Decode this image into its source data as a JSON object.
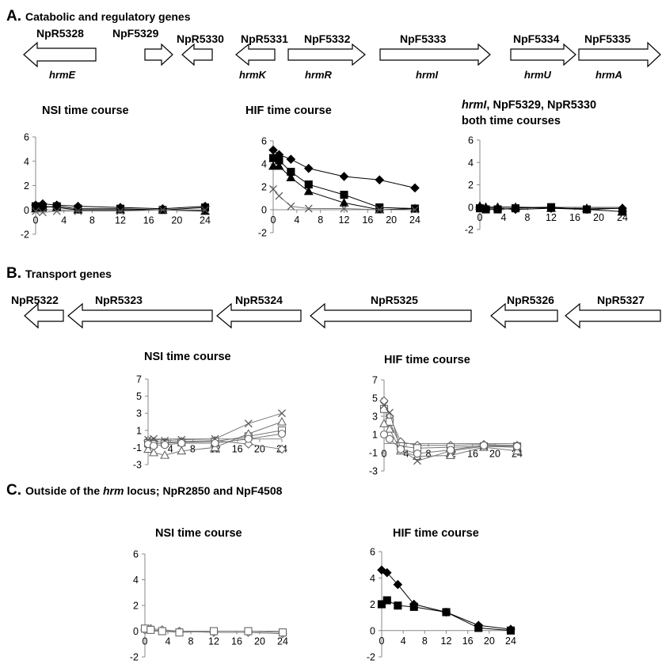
{
  "sections": [
    {
      "letter": "A.",
      "title": "Catabolic and regulatory genes",
      "title_italic": "",
      "title_tail": ""
    },
    {
      "letter": "B.",
      "title": "Transport genes",
      "title_italic": "",
      "title_tail": ""
    },
    {
      "letter": "C.",
      "title": "Outside of the ",
      "title_italic": "hrm",
      "title_tail": " locus; NpR2850 and NpF4508"
    }
  ],
  "genes_a": [
    {
      "name": "NpR5328",
      "symbol": "hrmE",
      "direction": "left"
    },
    {
      "name": "NpF5329",
      "symbol": "",
      "direction": "right"
    },
    {
      "name": "NpR5330",
      "symbol": "",
      "direction": "left"
    },
    {
      "name": "NpR5331",
      "symbol": "hrmK",
      "direction": "left"
    },
    {
      "name": "NpF5332",
      "symbol": "hrmR",
      "direction": "right"
    },
    {
      "name": "NpF5333",
      "symbol": "hrmI",
      "direction": "right"
    },
    {
      "name": "NpF5334",
      "symbol": "hrmU",
      "direction": "right"
    },
    {
      "name": "NpF5335",
      "symbol": "hrmA",
      "direction": "right"
    }
  ],
  "genes_b": [
    {
      "name": "NpR5322",
      "direction": "left"
    },
    {
      "name": "NpR5323",
      "direction": "left"
    },
    {
      "name": "NpR5324",
      "direction": "left"
    },
    {
      "name": "NpR5325",
      "direction": "left"
    },
    {
      "name": "NpR5326",
      "direction": "left"
    },
    {
      "name": "NpR5327",
      "direction": "left"
    }
  ],
  "chart_data": [
    {
      "id": "A-NSI",
      "type": "line",
      "title": "NSI time course",
      "x_ticks": [
        0,
        4,
        8,
        12,
        16,
        20,
        24
      ],
      "y_ticks": [
        -2,
        0,
        2,
        4,
        6
      ],
      "ylim": [
        -2,
        6
      ],
      "series": [
        {
          "marker": "diamond",
          "filled": true,
          "x": [
            0,
            1,
            3,
            6,
            12,
            18,
            24
          ],
          "y": [
            0.4,
            0.5,
            0.4,
            0.3,
            0.2,
            0.1,
            0.3
          ]
        },
        {
          "marker": "square",
          "filled": true,
          "x": [
            0,
            1,
            3,
            6,
            12,
            18,
            24
          ],
          "y": [
            0.3,
            0.2,
            0.3,
            0.1,
            0.1,
            0.0,
            0.2
          ]
        },
        {
          "marker": "triangle",
          "filled": true,
          "x": [
            0,
            1,
            3,
            6,
            12,
            18,
            24
          ],
          "y": [
            0.1,
            0.3,
            0.2,
            0.0,
            0.0,
            0.0,
            -0.1
          ]
        },
        {
          "marker": "x",
          "filled": false,
          "x": [
            0,
            1,
            3,
            6,
            12,
            18,
            24
          ],
          "y": [
            -0.1,
            -0.2,
            -0.1,
            -0.1,
            -0.1,
            0.0,
            0.0
          ]
        }
      ]
    },
    {
      "id": "A-HIF",
      "type": "line",
      "title": "HIF time course",
      "x_ticks": [
        0,
        4,
        8,
        12,
        16,
        20,
        24
      ],
      "y_ticks": [
        -2,
        0,
        2,
        4,
        6
      ],
      "ylim": [
        -2,
        6
      ],
      "series": [
        {
          "marker": "diamond",
          "filled": true,
          "x": [
            0,
            1,
            3,
            6,
            12,
            18,
            24
          ],
          "y": [
            5.2,
            4.8,
            4.4,
            3.6,
            2.9,
            2.6,
            1.9
          ]
        },
        {
          "marker": "square",
          "filled": true,
          "x": [
            0,
            1,
            3,
            6,
            12,
            18,
            24
          ],
          "y": [
            4.5,
            4.3,
            3.3,
            2.2,
            1.3,
            0.2,
            0.1
          ]
        },
        {
          "marker": "triangle",
          "filled": true,
          "x": [
            0,
            1,
            3,
            6,
            12,
            18,
            24
          ],
          "y": [
            3.8,
            3.8,
            2.8,
            1.6,
            0.6,
            0.0,
            0.1
          ]
        },
        {
          "marker": "x",
          "filled": false,
          "x": [
            0,
            1,
            3,
            6,
            12,
            18,
            24
          ],
          "y": [
            1.8,
            1.2,
            0.3,
            0.1,
            0.1,
            0.0,
            0.0
          ]
        }
      ]
    },
    {
      "id": "A-BOTH",
      "type": "line",
      "title": "both time courses",
      "title_line1_italic": "hrmI",
      "title_line1_rest": ", NpF5329, NpR5330",
      "x_ticks": [
        0,
        4,
        8,
        12,
        16,
        20,
        24
      ],
      "y_ticks": [
        -2,
        0,
        2,
        4,
        6
      ],
      "ylim": [
        -2,
        6
      ],
      "series": [
        {
          "marker": "diamond",
          "filled": true,
          "x": [
            0,
            1,
            3,
            6,
            12,
            18,
            24
          ],
          "y": [
            0.0,
            -0.1,
            -0.1,
            -0.2,
            -0.1,
            -0.2,
            -0.1
          ]
        },
        {
          "marker": "square",
          "filled": true,
          "x": [
            0,
            1,
            3,
            6,
            12,
            18,
            24
          ],
          "y": [
            -0.1,
            -0.2,
            -0.2,
            -0.1,
            0.0,
            -0.2,
            -0.4
          ]
        },
        {
          "marker": "triangle",
          "filled": true,
          "x": [
            0,
            1,
            3,
            6,
            12,
            18,
            24
          ],
          "y": [
            0.1,
            0.0,
            0.0,
            0.0,
            -0.1,
            -0.1,
            -0.1
          ]
        }
      ]
    },
    {
      "id": "B-NSI",
      "type": "line",
      "title": "NSI time course",
      "x_ticks": [
        0,
        4,
        8,
        12,
        16,
        20,
        24
      ],
      "y_ticks": [
        -3,
        -1,
        1,
        3,
        5,
        7
      ],
      "ylim": [
        -3,
        7
      ],
      "series": [
        {
          "marker": "diamond",
          "filled": false,
          "x": [
            0,
            1,
            3,
            6,
            12,
            18,
            24
          ],
          "y": [
            -0.2,
            -0.3,
            -0.4,
            -0.3,
            -0.2,
            -0.6,
            -1.2
          ]
        },
        {
          "marker": "square",
          "filled": false,
          "x": [
            0,
            1,
            3,
            6,
            12,
            18,
            24
          ],
          "y": [
            -0.5,
            -0.6,
            -0.5,
            -0.4,
            -0.3,
            0.3,
            1.0
          ]
        },
        {
          "marker": "triangle",
          "filled": false,
          "x": [
            0,
            1,
            3,
            6,
            12,
            18,
            24
          ],
          "y": [
            -1.2,
            -1.6,
            -1.9,
            -1.4,
            -1.0,
            0.6,
            2.0
          ]
        },
        {
          "marker": "x",
          "filled": false,
          "x": [
            0,
            1,
            3,
            6,
            12,
            18,
            24
          ],
          "y": [
            -0.1,
            0.0,
            -0.2,
            -0.1,
            0.0,
            1.8,
            3.0
          ]
        },
        {
          "marker": "circle",
          "filled": false,
          "x": [
            0,
            1,
            3,
            6,
            12,
            18,
            24
          ],
          "y": [
            -0.6,
            -0.8,
            -0.7,
            -0.5,
            -0.5,
            0.0,
            0.6
          ]
        }
      ]
    },
    {
      "id": "B-HIF",
      "type": "line",
      "title": "HIF time course",
      "x_ticks": [
        0,
        4,
        8,
        12,
        16,
        20,
        24
      ],
      "y_ticks": [
        -3,
        -1,
        1,
        3,
        5,
        7
      ],
      "ylim": [
        -3,
        7
      ],
      "series": [
        {
          "marker": "diamond",
          "filled": false,
          "x": [
            0,
            1,
            3,
            6,
            12,
            18,
            24
          ],
          "y": [
            4.7,
            3.0,
            0.2,
            -0.2,
            -0.2,
            -0.1,
            -0.2
          ]
        },
        {
          "marker": "square",
          "filled": false,
          "x": [
            0,
            1,
            3,
            6,
            12,
            18,
            24
          ],
          "y": [
            3.8,
            2.4,
            -0.3,
            -0.5,
            -0.4,
            -0.3,
            -0.3
          ]
        },
        {
          "marker": "triangle",
          "filled": false,
          "x": [
            0,
            1,
            3,
            6,
            12,
            18,
            24
          ],
          "y": [
            2.2,
            1.6,
            -0.8,
            -1.4,
            -1.3,
            -0.4,
            -0.8
          ]
        },
        {
          "marker": "x",
          "filled": false,
          "x": [
            0,
            1,
            3,
            6,
            12,
            18,
            24
          ],
          "y": [
            4.2,
            3.4,
            -0.6,
            -1.9,
            -0.8,
            -0.3,
            -0.4
          ]
        },
        {
          "marker": "circle",
          "filled": false,
          "x": [
            0,
            1,
            3,
            6,
            12,
            18,
            24
          ],
          "y": [
            1.0,
            0.5,
            -0.6,
            -1.1,
            -0.7,
            -0.2,
            -0.3
          ]
        }
      ]
    },
    {
      "id": "C-NSI",
      "type": "line",
      "title": "NSI time course",
      "x_ticks": [
        0,
        4,
        8,
        12,
        16,
        20,
        24
      ],
      "y_ticks": [
        -2,
        0,
        2,
        4,
        6
      ],
      "ylim": [
        -2,
        6
      ],
      "series": [
        {
          "marker": "diamond",
          "filled": false,
          "x": [
            0,
            1,
            3,
            6,
            12,
            18,
            24
          ],
          "y": [
            0.1,
            0.2,
            0.1,
            0.0,
            -0.1,
            -0.1,
            -0.2
          ]
        },
        {
          "marker": "square",
          "filled": false,
          "x": [
            0,
            1,
            3,
            6,
            12,
            18,
            24
          ],
          "y": [
            0.2,
            0.1,
            0.0,
            -0.1,
            0.0,
            0.0,
            -0.1
          ]
        }
      ]
    },
    {
      "id": "C-HIF",
      "type": "line",
      "title": "HIF time course",
      "x_ticks": [
        0,
        4,
        8,
        12,
        16,
        20,
        24
      ],
      "y_ticks": [
        -2,
        0,
        2,
        4,
        6
      ],
      "ylim": [
        -2,
        6
      ],
      "series": [
        {
          "marker": "diamond",
          "filled": true,
          "x": [
            0,
            1,
            3,
            6,
            12,
            18,
            24
          ],
          "y": [
            4.6,
            4.4,
            3.5,
            2.0,
            1.4,
            0.4,
            0.1
          ]
        },
        {
          "marker": "square",
          "filled": true,
          "x": [
            0,
            1,
            3,
            6,
            12,
            18,
            24
          ],
          "y": [
            2.0,
            2.3,
            1.9,
            1.8,
            1.4,
            0.2,
            0.0
          ]
        }
      ]
    }
  ]
}
